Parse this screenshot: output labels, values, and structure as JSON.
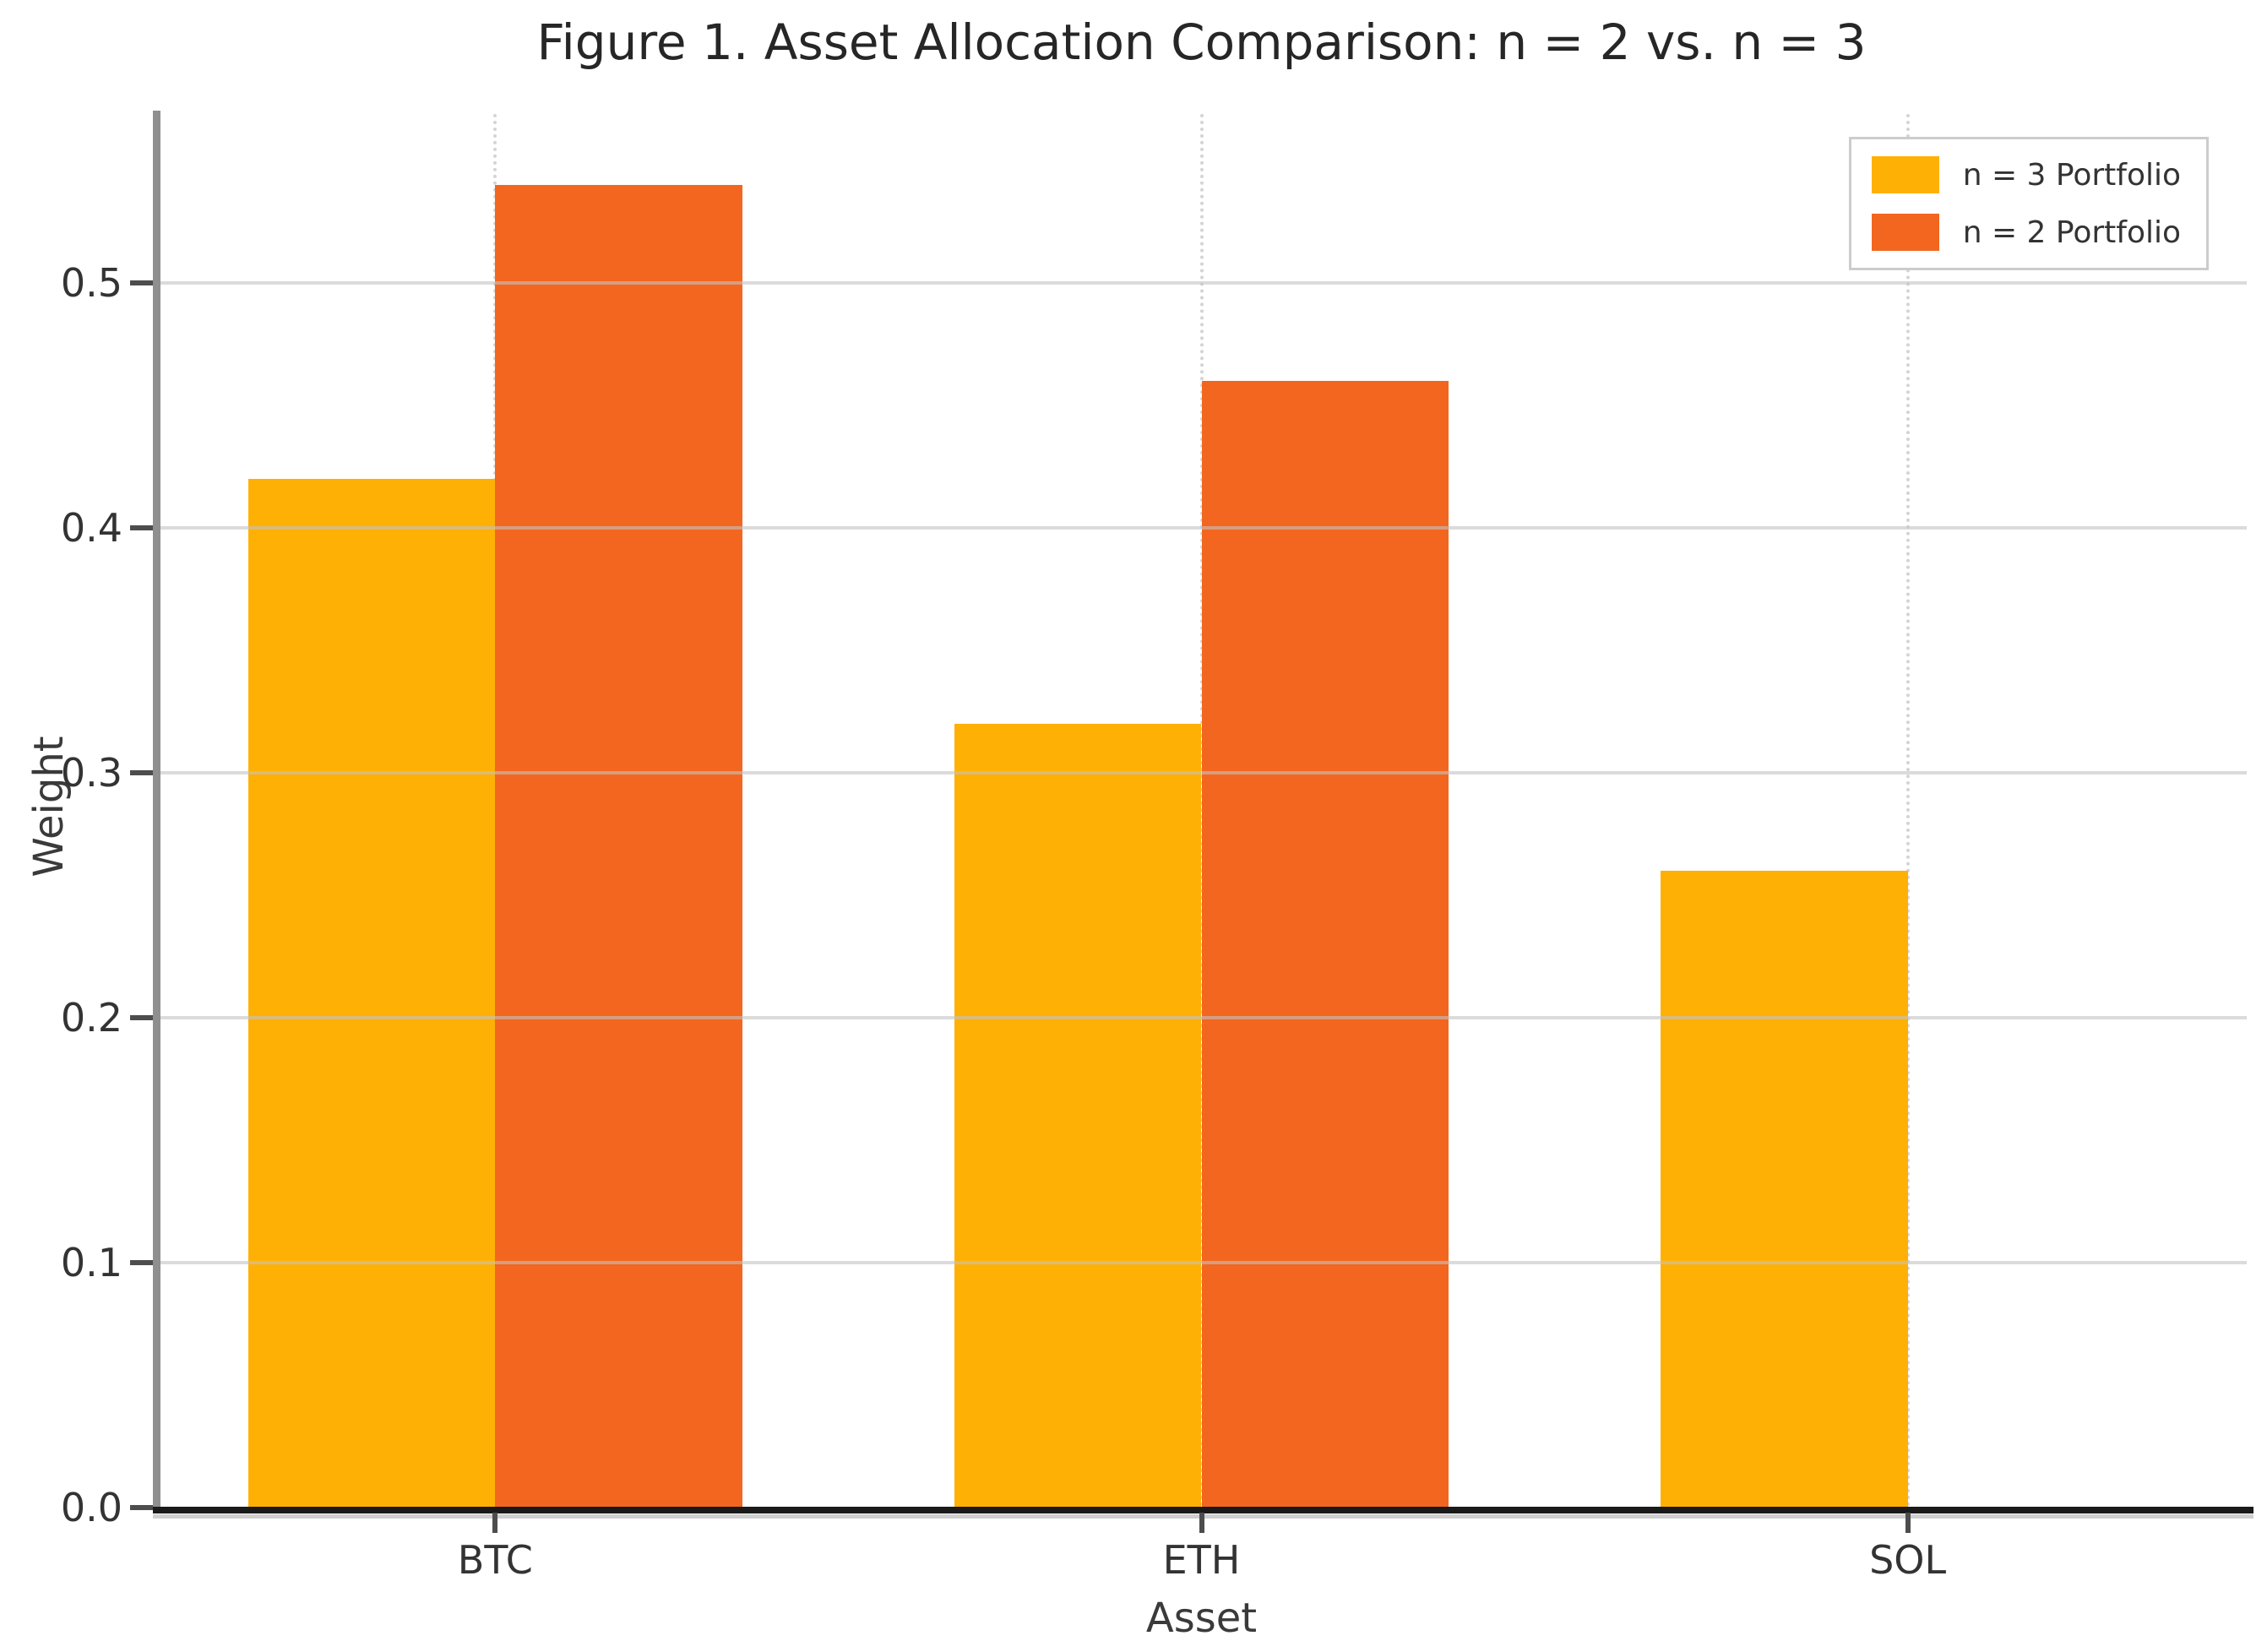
{
  "figure": {
    "background": "#ffffff"
  },
  "chart_data": {
    "type": "bar",
    "title": "Figure 1. Asset Allocation Comparison: n = 2 vs. n = 3",
    "xlabel": "Asset",
    "ylabel": "Weight",
    "categories": [
      "BTC",
      "ETH",
      "SOL"
    ],
    "series": [
      {
        "name": "n = 3 Portfolio",
        "color": "#FFB005",
        "values": [
          0.42,
          0.32,
          0.26
        ]
      },
      {
        "name": "n = 2 Portfolio",
        "color": "#F2661F",
        "values": [
          0.54,
          0.46,
          null
        ]
      }
    ],
    "ylim": [
      0,
      0.569
    ],
    "xlim": [
      -0.48,
      2.48
    ],
    "yticks": [
      0.0,
      0.1,
      0.2,
      0.3,
      0.4,
      0.5
    ],
    "ytick_labels": [
      "0.0",
      "0.1",
      "0.2",
      "0.3",
      "0.4",
      "0.5"
    ],
    "bar_width_data_units": 0.35,
    "grid": true,
    "grid_horizontal_style": "solid",
    "grid_vertical_style": "dotted",
    "legend_position": "upper right",
    "legend_labels": [
      "n = 3 Portfolio",
      "n = 2 Portfolio"
    ],
    "axis_colors": {
      "left_spine": "#8f8f8f",
      "bottom_spine": "#1a1a1a",
      "tick": "#4d4d4d",
      "text": "#333333"
    }
  }
}
